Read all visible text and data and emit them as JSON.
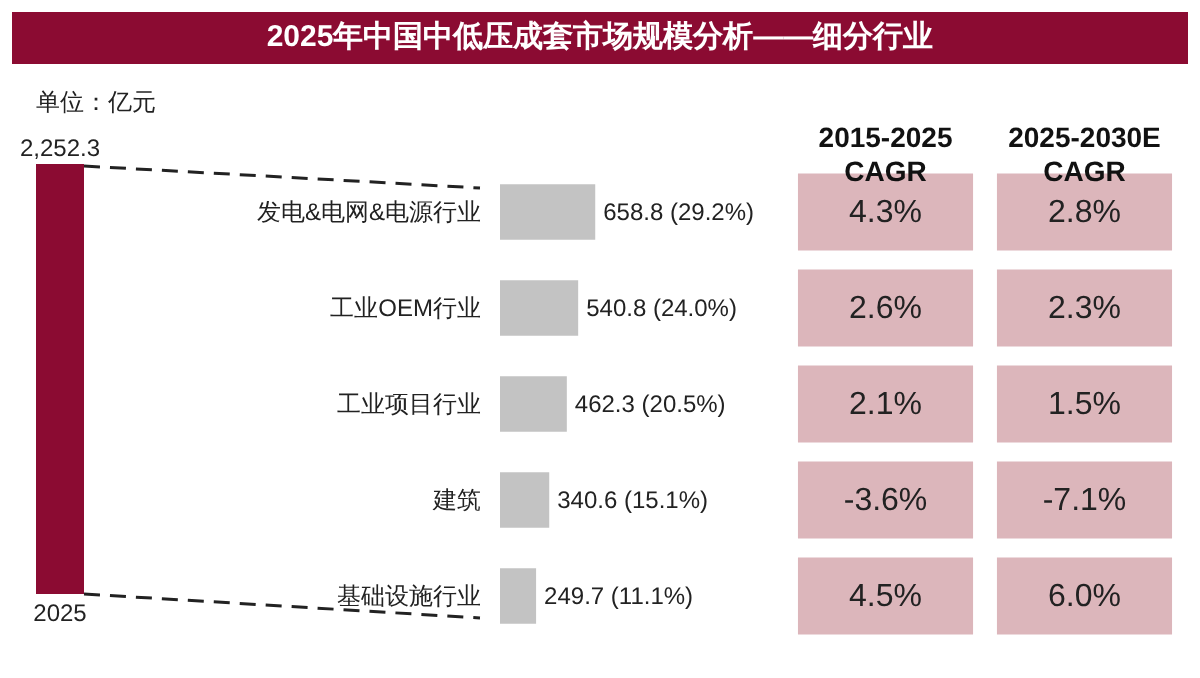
{
  "chart_data": [
    {
      "type": "bar",
      "annotations": [
        "单位：亿元"
      ],
      "categories": [
        "2025"
      ],
      "values": [
        2252.3
      ],
      "value_labels": [
        "2,252.3"
      ],
      "color": "#8b0b32"
    },
    {
      "type": "bar",
      "title": "2025年中国中低压成套市场规模分析——细分行业",
      "orientation": "horizontal",
      "categories": [
        "发电&电网&电源行业",
        "工业OEM行业",
        "工业项目行业",
        "建筑",
        "基础设施行业"
      ],
      "values": [
        658.8,
        540.8,
        462.3,
        340.6,
        249.7
      ],
      "value_labels": [
        "658.8 (29.2%)",
        "540.8 (24.0%)",
        "462.3 (20.5%)",
        "340.6 (15.1%)",
        "249.7 (11.1%)"
      ],
      "color": "#c3c3c3"
    },
    {
      "type": "other",
      "categories": [
        "2015-2025\nCAGR",
        "2025-2030E\nCAGR"
      ],
      "color": "#dcb6bb",
      "annotations": [
        "4.3%",
        "2.8%",
        "2.6%",
        "2.3%",
        "2.1%",
        "1.5%",
        "-3.6%",
        "-7.1%",
        "4.5%",
        "6.0%"
      ]
    }
  ]
}
